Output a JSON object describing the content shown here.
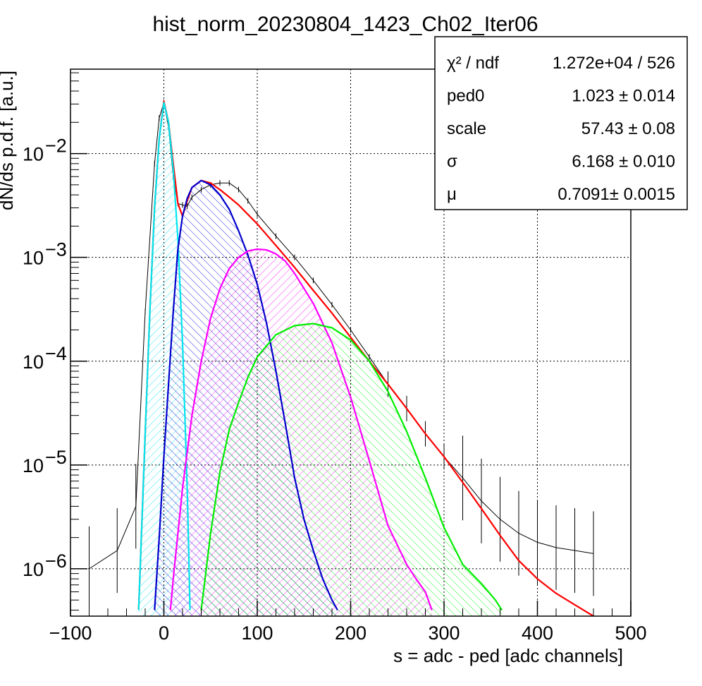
{
  "chart_data": {
    "type": "line",
    "title": "hist_norm_20230804_1423_Ch02_Iter06",
    "xlabel": "s = adc - ped [adc channels]",
    "ylabel": "dN/ds p.d.f. [a.u.]",
    "xlim": [
      -100,
      500
    ],
    "ylim": [
      3.5e-07,
      0.065
    ],
    "yscale": "log",
    "grid": true,
    "x_ticks": [
      "−100",
      "0",
      "100",
      "200",
      "300",
      "400",
      "500"
    ],
    "y_ticks": [
      {
        "base": "10",
        "exp": "−2"
      },
      {
        "base": "10",
        "exp": "−3"
      },
      {
        "base": "10",
        "exp": "−4"
      },
      {
        "base": "10",
        "exp": "−5"
      },
      {
        "base": "10",
        "exp": "−6"
      }
    ],
    "stats_box": {
      "placement": "top-right",
      "rows": [
        {
          "label": "χ² / ndf",
          "value": "1.272e+04 / 526"
        },
        {
          "label": "ped0",
          "value": "1.023 ± 0.014"
        },
        {
          "label": "scale",
          "value": "57.43 ± 0.08"
        },
        {
          "label": "σ",
          "value": "6.168 ± 0.010"
        },
        {
          "label": "μ",
          "value": "0.7091± 0.0015"
        }
      ]
    },
    "histogram": {
      "x": [
        -80,
        -50,
        -30,
        -20,
        -10,
        -5,
        0,
        5,
        10,
        15,
        20,
        25,
        30,
        40,
        50,
        60,
        70,
        80,
        90,
        100,
        120,
        140,
        160,
        180,
        200,
        220,
        240,
        260,
        280,
        300,
        320,
        340,
        360,
        380,
        400,
        420,
        440,
        460
      ],
      "y": [
        1e-06,
        1.5e-06,
        4e-06,
        0.0003,
        0.008,
        0.022,
        0.031,
        0.018,
        0.006,
        0.0033,
        0.0032,
        0.0031,
        0.0038,
        0.0045,
        0.005,
        0.0052,
        0.0052,
        0.0045,
        0.0035,
        0.0026,
        0.0016,
        0.001,
        0.0006,
        0.00035,
        0.0002,
        0.00011,
        6e-05,
        3.5e-05,
        2e-05,
        1.2e-05,
        7.5e-06,
        4.5e-06,
        3e-06,
        2.2e-06,
        1.8e-06,
        1.6e-06,
        1.5e-06,
        1.4e-06
      ],
      "color": "#000000"
    },
    "series": [
      {
        "name": "",
        "color": "#ff0000",
        "x": [
          -27,
          -20,
          -15,
          -10,
          -5,
          0,
          5,
          10,
          15,
          20,
          25,
          30,
          40,
          50,
          60,
          70,
          80,
          100,
          120,
          140,
          160,
          180,
          200,
          220,
          240,
          260,
          280,
          300,
          320,
          340,
          360,
          380,
          400,
          420,
          440,
          460
        ],
        "y": [
          4e-07,
          2e-05,
          0.0003,
          0.003,
          0.014,
          0.032,
          0.02,
          0.008,
          0.0033,
          0.0025,
          0.0035,
          0.0047,
          0.0055,
          0.0052,
          0.0045,
          0.0038,
          0.0032,
          0.0021,
          0.0013,
          0.0008,
          0.00048,
          0.00029,
          0.00017,
          0.0001,
          6e-05,
          3.5e-05,
          2e-05,
          1.2e-05,
          6.8e-06,
          3.8e-06,
          2.1e-06,
          1.2e-06,
          8e-07,
          5.8e-07,
          4.5e-07,
          3.5e-07
        ]
      },
      {
        "name": "",
        "color": "#00e5ee",
        "fill": true,
        "x": [
          -27,
          -20,
          -15,
          -10,
          -5,
          0,
          5,
          10,
          15,
          20,
          25,
          28
        ],
        "y": [
          4e-07,
          2e-05,
          0.0003,
          0.003,
          0.014,
          0.031,
          0.02,
          0.007,
          0.0015,
          0.00015,
          6e-06,
          4e-07
        ]
      },
      {
        "name": "",
        "color": "#0000cc",
        "fill": true,
        "x": [
          -10,
          -5,
          0,
          5,
          10,
          15,
          20,
          25,
          30,
          40,
          50,
          60,
          70,
          80,
          90,
          100,
          110,
          120,
          130,
          140,
          150,
          160,
          170,
          180,
          186
        ],
        "y": [
          4e-07,
          2e-06,
          1.2e-05,
          6e-05,
          0.0003,
          0.0012,
          0.0025,
          0.0037,
          0.0047,
          0.0055,
          0.005,
          0.004,
          0.0029,
          0.0018,
          0.00105,
          0.00055,
          0.00023,
          8e-05,
          2.5e-05,
          7.5e-06,
          3e-06,
          1.5e-06,
          8e-07,
          5e-07,
          4e-07
        ]
      },
      {
        "name": "",
        "color": "#ff00ff",
        "fill": true,
        "x": [
          7,
          10,
          20,
          30,
          40,
          50,
          60,
          70,
          80,
          90,
          100,
          110,
          120,
          130,
          140,
          160,
          180,
          200,
          220,
          240,
          260,
          270,
          280,
          287
        ],
        "y": [
          4e-07,
          8e-07,
          6e-06,
          3e-05,
          0.0001,
          0.00026,
          0.0005,
          0.00078,
          0.001,
          0.00115,
          0.0012,
          0.00118,
          0.00108,
          0.00092,
          0.0007,
          0.00036,
          0.00015,
          4.5e-05,
          1.1e-05,
          2.6e-06,
          1.1e-06,
          8e-07,
          6e-07,
          4e-07
        ]
      },
      {
        "name": "",
        "color": "#00ee00",
        "fill": true,
        "x": [
          40,
          50,
          60,
          70,
          80,
          90,
          100,
          120,
          140,
          160,
          180,
          200,
          220,
          240,
          260,
          280,
          300,
          320,
          340,
          355,
          362
        ],
        "y": [
          4e-07,
          2.2e-06,
          8.5e-06,
          2.2e-05,
          4e-05,
          7e-05,
          0.00011,
          0.00018,
          0.00022,
          0.00023,
          0.00021,
          0.00016,
          0.0001,
          5.1e-05,
          2.1e-05,
          7.5e-06,
          2.5e-06,
          1.1e-06,
          7.2e-07,
          5e-07,
          4e-07
        ]
      }
    ]
  }
}
